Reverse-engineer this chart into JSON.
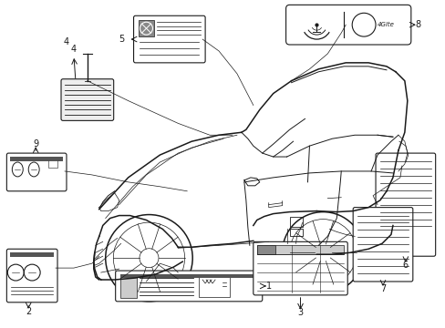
{
  "bg_color": "#ffffff",
  "line_color": "#1a1a1a",
  "fig_width": 4.89,
  "fig_height": 3.6,
  "lw_body": 1.1,
  "lw_detail": 0.7,
  "lw_thin": 0.5
}
